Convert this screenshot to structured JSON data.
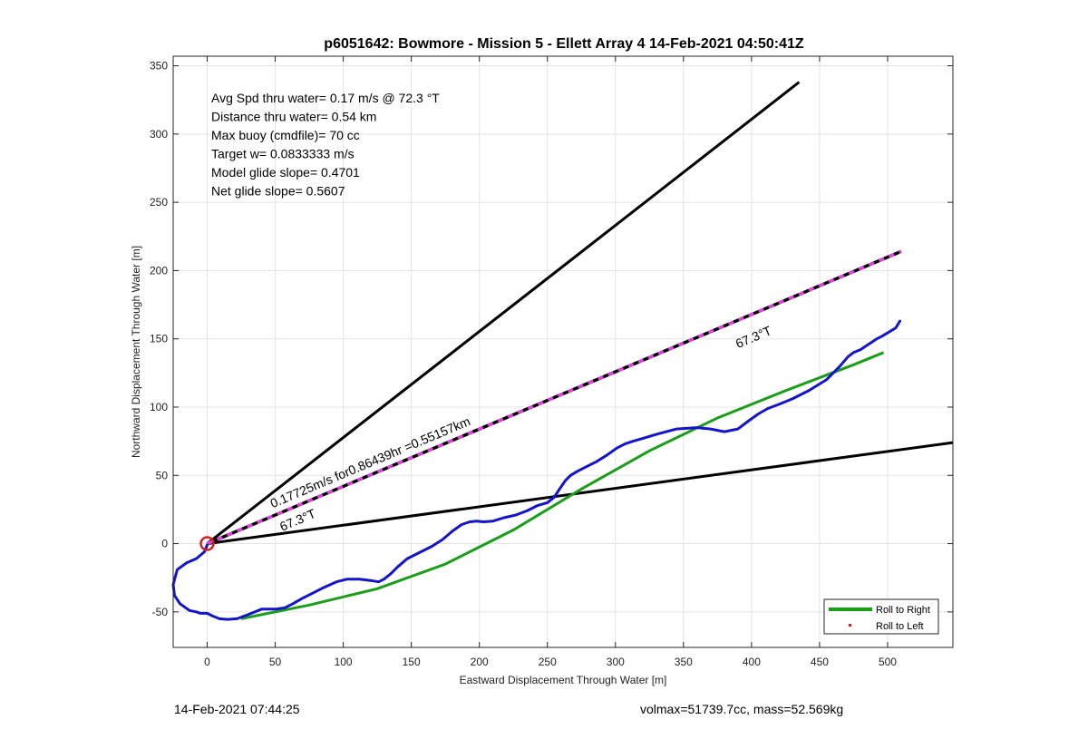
{
  "chart_data": {
    "type": "line",
    "title": "p6051642: Bowmore - Mission 5 - Ellett Array 4 14-Feb-2021 04:50:41Z",
    "xlabel": "Eastward Displacement Through Water [m]",
    "ylabel": "Northward Displacement Through Water [m]",
    "xlim": [
      -25,
      548
    ],
    "ylim": [
      -76,
      357
    ],
    "xticks": [
      0,
      50,
      100,
      150,
      200,
      250,
      300,
      350,
      400,
      450,
      500
    ],
    "yticks": [
      -50,
      0,
      50,
      100,
      150,
      200,
      250,
      300,
      350
    ],
    "grid": true,
    "legend_position": "bottom-right",
    "annotations": [
      "Avg Spd thru water=  0.17 m/s @  72.3 °T",
      "Distance thru water=  0.54 km",
      "Max buoy (cmdfile)= 70 cc",
      "Target w= 0.0833333 m/s",
      "Model glide slope= 0.4701",
      "Net glide slope= 0.5607"
    ],
    "line_labels": {
      "speed": "0.17725m/s for0.86439hr =0.55157km",
      "heading_upper": "67.3°T",
      "heading_lower": "67.3°T"
    },
    "series": [
      {
        "name": "Roll to Right",
        "color": "#1a9e1a",
        "x": [
          25,
          75,
          125,
          175,
          225,
          275,
          325,
          375,
          425,
          475,
          497
        ],
        "y": [
          -55,
          -45,
          -33,
          -15,
          10,
          40,
          68,
          92,
          112,
          131,
          140
        ]
      },
      {
        "name": "Roll to Left",
        "color": "#d61f1f",
        "x": [],
        "y": []
      },
      {
        "color": "#1414cc",
        "x": [
          0,
          -2,
          -8,
          -15,
          -22,
          -25,
          -24,
          -20,
          -13,
          -8,
          -5,
          0,
          4,
          9,
          15,
          22,
          30,
          40,
          50,
          57,
          63,
          70,
          78,
          86,
          95,
          103,
          112,
          120,
          126,
          130,
          135,
          140,
          147,
          155,
          165,
          173,
          180,
          187,
          193,
          198,
          203,
          210,
          218,
          227,
          235,
          243,
          250,
          255,
          259,
          263,
          267,
          272,
          278,
          286,
          294,
          301,
          307,
          313,
          320,
          330,
          345,
          360,
          370,
          380,
          390,
          398,
          405,
          412,
          420,
          430,
          442,
          455,
          465,
          471,
          475,
          480,
          486,
          492,
          496,
          501,
          506,
          509
        ],
        "y": [
          -1,
          -6,
          -11,
          -14,
          -19,
          -30,
          -38,
          -44,
          -49,
          -50,
          -51,
          -51,
          -53,
          -55,
          -55.5,
          -55,
          -52,
          -48,
          -48,
          -47,
          -44,
          -40,
          -36,
          -32,
          -28,
          -26,
          -26,
          -27,
          -28,
          -26,
          -22,
          -17,
          -11,
          -7,
          -2,
          3,
          9,
          14,
          16,
          16.5,
          16,
          16.5,
          19,
          21,
          24,
          28,
          30,
          34,
          40,
          46,
          50,
          53,
          56,
          60,
          65,
          70,
          73,
          75,
          77,
          80,
          84,
          85,
          84,
          82,
          84,
          90,
          95,
          99,
          102,
          106,
          112,
          120,
          130,
          137,
          140,
          142,
          146,
          150,
          152,
          155,
          158,
          163
        ]
      },
      {
        "color": "#000000",
        "x": [
          0,
          435
        ],
        "y": [
          0,
          338
        ]
      },
      {
        "color": "#000000",
        "x": [
          0,
          548
        ],
        "y": [
          0,
          74
        ]
      },
      {
        "color": "#000000",
        "dash_color": "#e040e0",
        "x": [
          0,
          510
        ],
        "y": [
          0,
          214
        ]
      }
    ],
    "marker": {
      "x": 0,
      "y": 0,
      "shape": "circle",
      "color": "#d61f1f"
    }
  },
  "footer": {
    "timestamp": "14-Feb-2021 07:44:25",
    "info": "volmax=51739.7cc, mass=52.569kg"
  }
}
